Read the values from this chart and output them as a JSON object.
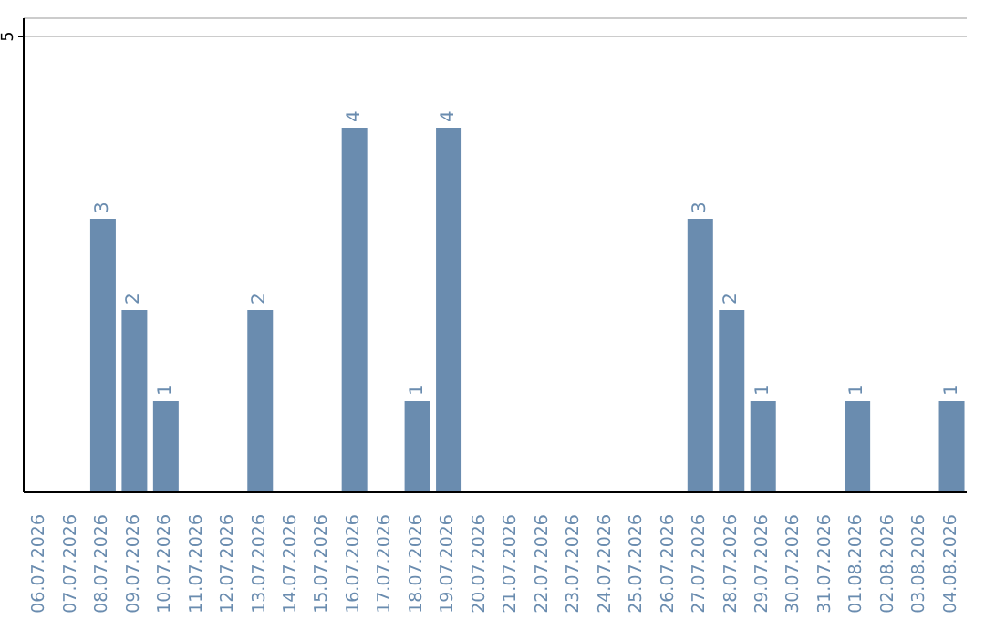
{
  "chart_data": {
    "type": "bar",
    "categories": [
      "06.07.2026",
      "07.07.2026",
      "08.07.2026",
      "09.07.2026",
      "10.07.2026",
      "11.07.2026",
      "12.07.2026",
      "13.07.2026",
      "14.07.2026",
      "15.07.2026",
      "16.07.2026",
      "17.07.2026",
      "18.07.2026",
      "19.07.2026",
      "20.07.2026",
      "21.07.2026",
      "22.07.2026",
      "23.07.2026",
      "24.07.2026",
      "25.07.2026",
      "26.07.2026",
      "27.07.2026",
      "28.07.2026",
      "29.07.2026",
      "30.07.2026",
      "31.07.2026",
      "01.08.2026",
      "02.08.2026",
      "03.08.2026",
      "04.08.2026"
    ],
    "values": [
      0,
      0,
      3,
      2,
      1,
      0,
      0,
      2,
      0,
      0,
      4,
      0,
      1,
      4,
      0,
      0,
      0,
      0,
      0,
      0,
      0,
      3,
      2,
      1,
      0,
      0,
      1,
      0,
      0,
      1
    ],
    "value_labels": [
      null,
      null,
      "3",
      "2",
      "1",
      null,
      null,
      "2",
      null,
      null,
      "4",
      null,
      "1",
      "4",
      null,
      null,
      null,
      null,
      null,
      null,
      null,
      "3",
      "2",
      "1",
      null,
      null,
      "1",
      null,
      null,
      "1"
    ],
    "color": "#6a8caf",
    "ylim": [
      0,
      5.2
    ],
    "yticks": [
      5
    ],
    "grid": "y"
  }
}
